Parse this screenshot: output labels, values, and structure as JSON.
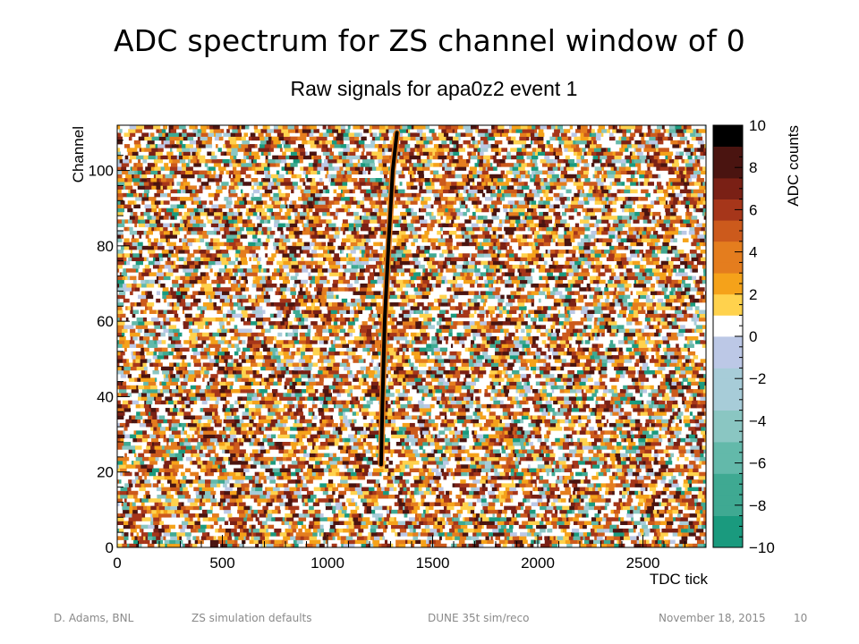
{
  "slide": {
    "title": "ADC spectrum for ZS channel window of 0"
  },
  "footer": {
    "author": "D. Adams, BNL",
    "topic": "ZS simulation defaults",
    "project": "DUNE 35t sim/reco",
    "date": "November 18, 2015",
    "page": "10"
  },
  "chart_data": {
    "type": "heatmap",
    "title": "Raw signals for apa0z2 event 1",
    "xlabel": "TDC tick",
    "ylabel": "Channel",
    "zlabel": "ADC counts",
    "xlim": [
      0,
      2800
    ],
    "ylim": [
      0,
      112
    ],
    "zlim": [
      -10,
      10
    ],
    "xticks": [
      "0",
      "500",
      "1000",
      "1500",
      "2000",
      "2500"
    ],
    "yticks": [
      "0",
      "20",
      "40",
      "60",
      "80",
      "100"
    ],
    "zticks": [
      "−10",
      "−8",
      "−6",
      "−4",
      "−2",
      "0",
      "2",
      "4",
      "6",
      "8",
      "10"
    ],
    "grid": false,
    "palette": {
      "negative": [
        "#1a9a7e",
        "#3fa992",
        "#63b9aa",
        "#8ac6c2",
        "#a7ccd8",
        "#bcc8e6"
      ],
      "positive": [
        "#ffd24d",
        "#f5a21a",
        "#e47d1e",
        "#cc5a1c",
        "#a6361a",
        "#7a2015",
        "#4a1410",
        "#000000"
      ],
      "zero": "#ffffff"
    },
    "signal_track": {
      "description": "dark ADC signal track",
      "points": [
        {
          "tick": 1255,
          "channel": 22
        },
        {
          "tick": 1262,
          "channel": 40
        },
        {
          "tick": 1272,
          "channel": 60
        },
        {
          "tick": 1290,
          "channel": 80
        },
        {
          "tick": 1310,
          "channel": 100
        },
        {
          "tick": 1330,
          "channel": 110
        }
      ]
    }
  }
}
